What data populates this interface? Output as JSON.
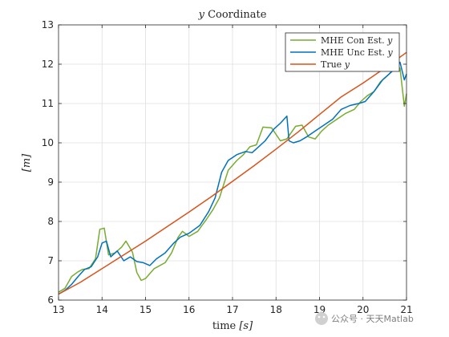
{
  "chart_data": {
    "type": "line",
    "title_var": "y",
    "title_rest": " Coordinate",
    "xlabel_text": "time ",
    "xlabel_unit": "[s]",
    "ylabel": "[m]",
    "xlim": [
      13,
      21
    ],
    "ylim": [
      6,
      13
    ],
    "xticks": [
      "13",
      "14",
      "15",
      "16",
      "17",
      "18",
      "19",
      "20",
      "21"
    ],
    "yticks": [
      "6",
      "7",
      "8",
      "9",
      "10",
      "11",
      "12",
      "13"
    ],
    "grid": true,
    "legend_position": "top-right",
    "series": [
      {
        "name": "MHE Con Est. y",
        "name_text": "MHE Con Est. ",
        "name_var": "y",
        "color": "#77ac30",
        "x": [
          13.0,
          13.15,
          13.3,
          13.45,
          13.55,
          13.7,
          13.85,
          13.95,
          14.05,
          14.15,
          14.3,
          14.45,
          14.55,
          14.7,
          14.8,
          14.9,
          15.0,
          15.2,
          15.45,
          15.6,
          15.75,
          15.85,
          16.0,
          16.2,
          16.4,
          16.55,
          16.7,
          16.9,
          17.1,
          17.25,
          17.4,
          17.55,
          17.7,
          17.9,
          18.1,
          18.25,
          18.45,
          18.6,
          18.75,
          18.9,
          19.05,
          19.2,
          19.4,
          19.6,
          19.8,
          19.95,
          20.1,
          20.25,
          20.4,
          20.6,
          20.75,
          20.85,
          20.95,
          21.0
        ],
        "y": [
          6.2,
          6.3,
          6.6,
          6.72,
          6.78,
          6.8,
          7.05,
          7.8,
          7.83,
          7.15,
          7.2,
          7.35,
          7.5,
          7.22,
          6.7,
          6.5,
          6.55,
          6.8,
          6.95,
          7.2,
          7.6,
          7.75,
          7.62,
          7.75,
          8.05,
          8.3,
          8.6,
          9.3,
          9.55,
          9.7,
          9.9,
          9.95,
          10.4,
          10.38,
          10.05,
          10.1,
          10.42,
          10.45,
          10.15,
          10.1,
          10.3,
          10.45,
          10.6,
          10.75,
          10.85,
          11.05,
          11.2,
          11.3,
          11.55,
          11.75,
          11.95,
          11.9,
          10.93,
          11.25
        ]
      },
      {
        "name": "MHE Unc Est. y",
        "name_text": "MHE Unc Est. ",
        "name_var": "y",
        "color": "#0072bd",
        "x": [
          13.0,
          13.15,
          13.3,
          13.45,
          13.6,
          13.75,
          13.9,
          14.0,
          14.1,
          14.2,
          14.35,
          14.5,
          14.65,
          14.8,
          14.95,
          15.1,
          15.25,
          15.45,
          15.65,
          15.8,
          16.0,
          16.25,
          16.45,
          16.6,
          16.75,
          16.9,
          17.1,
          17.3,
          17.45,
          17.6,
          17.75,
          17.95,
          18.1,
          18.25,
          18.3,
          18.4,
          18.55,
          18.7,
          18.9,
          19.1,
          19.3,
          19.5,
          19.7,
          19.9,
          20.05,
          20.25,
          20.45,
          20.6,
          20.75,
          20.85,
          20.95,
          21.0
        ],
        "y": [
          6.15,
          6.25,
          6.4,
          6.6,
          6.78,
          6.85,
          7.1,
          7.45,
          7.5,
          7.1,
          7.25,
          7.0,
          7.1,
          6.98,
          6.95,
          6.88,
          7.05,
          7.2,
          7.45,
          7.6,
          7.7,
          7.9,
          8.25,
          8.6,
          9.25,
          9.55,
          9.7,
          9.78,
          9.75,
          9.9,
          10.05,
          10.35,
          10.5,
          10.68,
          10.05,
          10.0,
          10.05,
          10.15,
          10.3,
          10.45,
          10.6,
          10.85,
          10.95,
          11.0,
          11.05,
          11.3,
          11.6,
          11.75,
          11.9,
          12.05,
          11.6,
          11.75
        ]
      },
      {
        "name": "True y",
        "name_text": "True ",
        "name_var": "y",
        "color": "#d95319",
        "x": [
          13.0,
          13.5,
          14.0,
          14.5,
          15.0,
          15.5,
          16.0,
          16.5,
          17.0,
          17.5,
          18.0,
          18.5,
          19.0,
          19.5,
          20.0,
          20.5,
          21.0
        ],
        "y": [
          6.15,
          6.45,
          6.8,
          7.15,
          7.5,
          7.87,
          8.24,
          8.62,
          9.02,
          9.42,
          9.84,
          10.27,
          10.72,
          11.17,
          11.52,
          11.9,
          12.3
        ]
      }
    ]
  },
  "watermark": {
    "text": "公众号 · 天天Matlab"
  }
}
